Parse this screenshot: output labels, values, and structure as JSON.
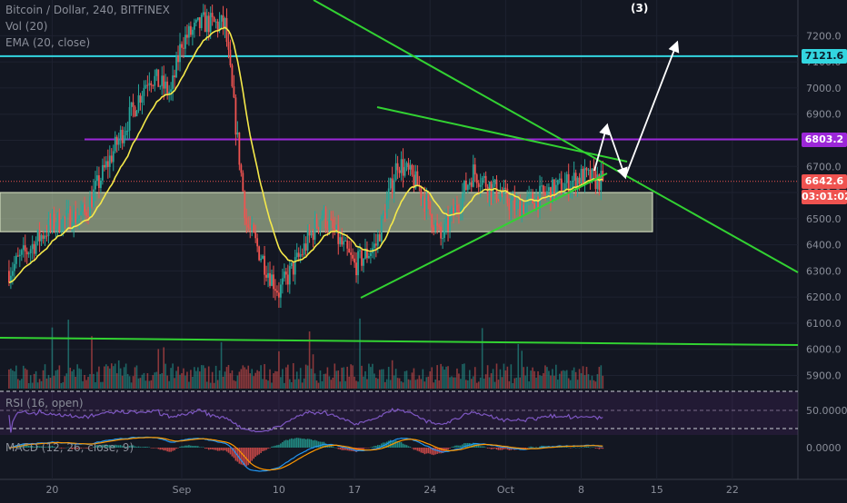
{
  "header": {
    "symbol": "Bitcoin / Dollar, 240, BITFINEX",
    "vol": "Vol (20)",
    "ema": "EMA (20, close)",
    "rsi": "RSI (16, open)",
    "macd": "MACD (12, 26, close, 9)"
  },
  "wave_label": "(3)",
  "price_labels": {
    "resistance_top": "7121.6",
    "resistance_mid": "6803.2",
    "last_price": "6642.6",
    "countdown": "03:01:02"
  },
  "colors": {
    "background": "#131722",
    "grid": "#1e2230",
    "up": "#26a69a",
    "down": "#ef5350",
    "ema": "#f5e94a",
    "trendline": "#32d232",
    "cyan_line": "#33d6e0",
    "purple_line": "#9c27d8",
    "rsi_line": "#7e57c2",
    "macd_line": "#2196f3",
    "signal_line": "#ff9800",
    "arrow": "#ffffff",
    "zone_fill": "#cfe3b5"
  },
  "chart_data": [
    {
      "type": "candlestick",
      "title": "Bitcoin / Dollar, 240, BITFINEX",
      "y_axis_ticks": [
        5900,
        6000,
        6100,
        6200,
        6300,
        6400,
        6500,
        6600,
        6700,
        6800,
        6900,
        7000,
        7100,
        7200
      ],
      "ylim": [
        5800,
        7250
      ],
      "x_axis_ticks": [
        "20",
        "Sep",
        "10",
        "17",
        "24",
        "Oct",
        "8",
        "15",
        "22"
      ],
      "ohlc_anchor_path": [
        {
          "date": "Aug 16",
          "close": 6300
        },
        {
          "date": "Aug 20",
          "close": 6480
        },
        {
          "date": "Aug 23",
          "close": 6520
        },
        {
          "date": "Aug 25",
          "close": 6700
        },
        {
          "date": "Aug 29",
          "close": 7050
        },
        {
          "date": "Aug 31",
          "close": 6980
        },
        {
          "date": "Sep 1",
          "close": 7180
        },
        {
          "date": "Sep 3",
          "close": 7250
        },
        {
          "date": "Sep 5",
          "close": 7240
        },
        {
          "date": "Sep 7",
          "close": 6480
        },
        {
          "date": "Sep 9",
          "close": 6300
        },
        {
          "date": "Sep 10",
          "close": 6220
        },
        {
          "date": "Sep 12",
          "close": 6360
        },
        {
          "date": "Sep 14",
          "close": 6520
        },
        {
          "date": "Sep 17",
          "close": 6320
        },
        {
          "date": "Sep 19",
          "close": 6400
        },
        {
          "date": "Sep 21",
          "close": 6720
        },
        {
          "date": "Sep 23",
          "close": 6620
        },
        {
          "date": "Sep 25",
          "close": 6420
        },
        {
          "date": "Sep 28",
          "close": 6680
        },
        {
          "date": "Oct 2",
          "close": 6540
        },
        {
          "date": "Oct 5",
          "close": 6600
        },
        {
          "date": "Oct 8",
          "close": 6660
        },
        {
          "date": "Oct 10",
          "close": 6642.6
        }
      ],
      "indicators": {
        "ema": {
          "name": "EMA (20, close)"
        }
      },
      "horizontal_levels": [
        {
          "value": 7121.6,
          "color": "cyan"
        },
        {
          "value": 6803.2,
          "color": "purple"
        }
      ],
      "last_price": 6642.6,
      "countdown": "03:01:02",
      "support_zone": {
        "from": 6450,
        "to": 6600
      },
      "projection": {
        "label": "(3)",
        "target": 7121.6
      }
    },
    {
      "type": "bar",
      "title": "Vol (20)",
      "axis_note": "no y-axis ticks"
    },
    {
      "type": "line",
      "title": "RSI (16, open)",
      "y_axis_ticks": [
        "50.0000"
      ],
      "guide_levels": [
        70,
        50,
        30
      ]
    },
    {
      "type": "line",
      "title": "MACD (12, 26, close, 9)",
      "y_axis_ticks": [
        "0.0000"
      ],
      "series": [
        {
          "name": "MACD"
        },
        {
          "name": "Signal"
        },
        {
          "name": "Histogram"
        }
      ]
    }
  ]
}
